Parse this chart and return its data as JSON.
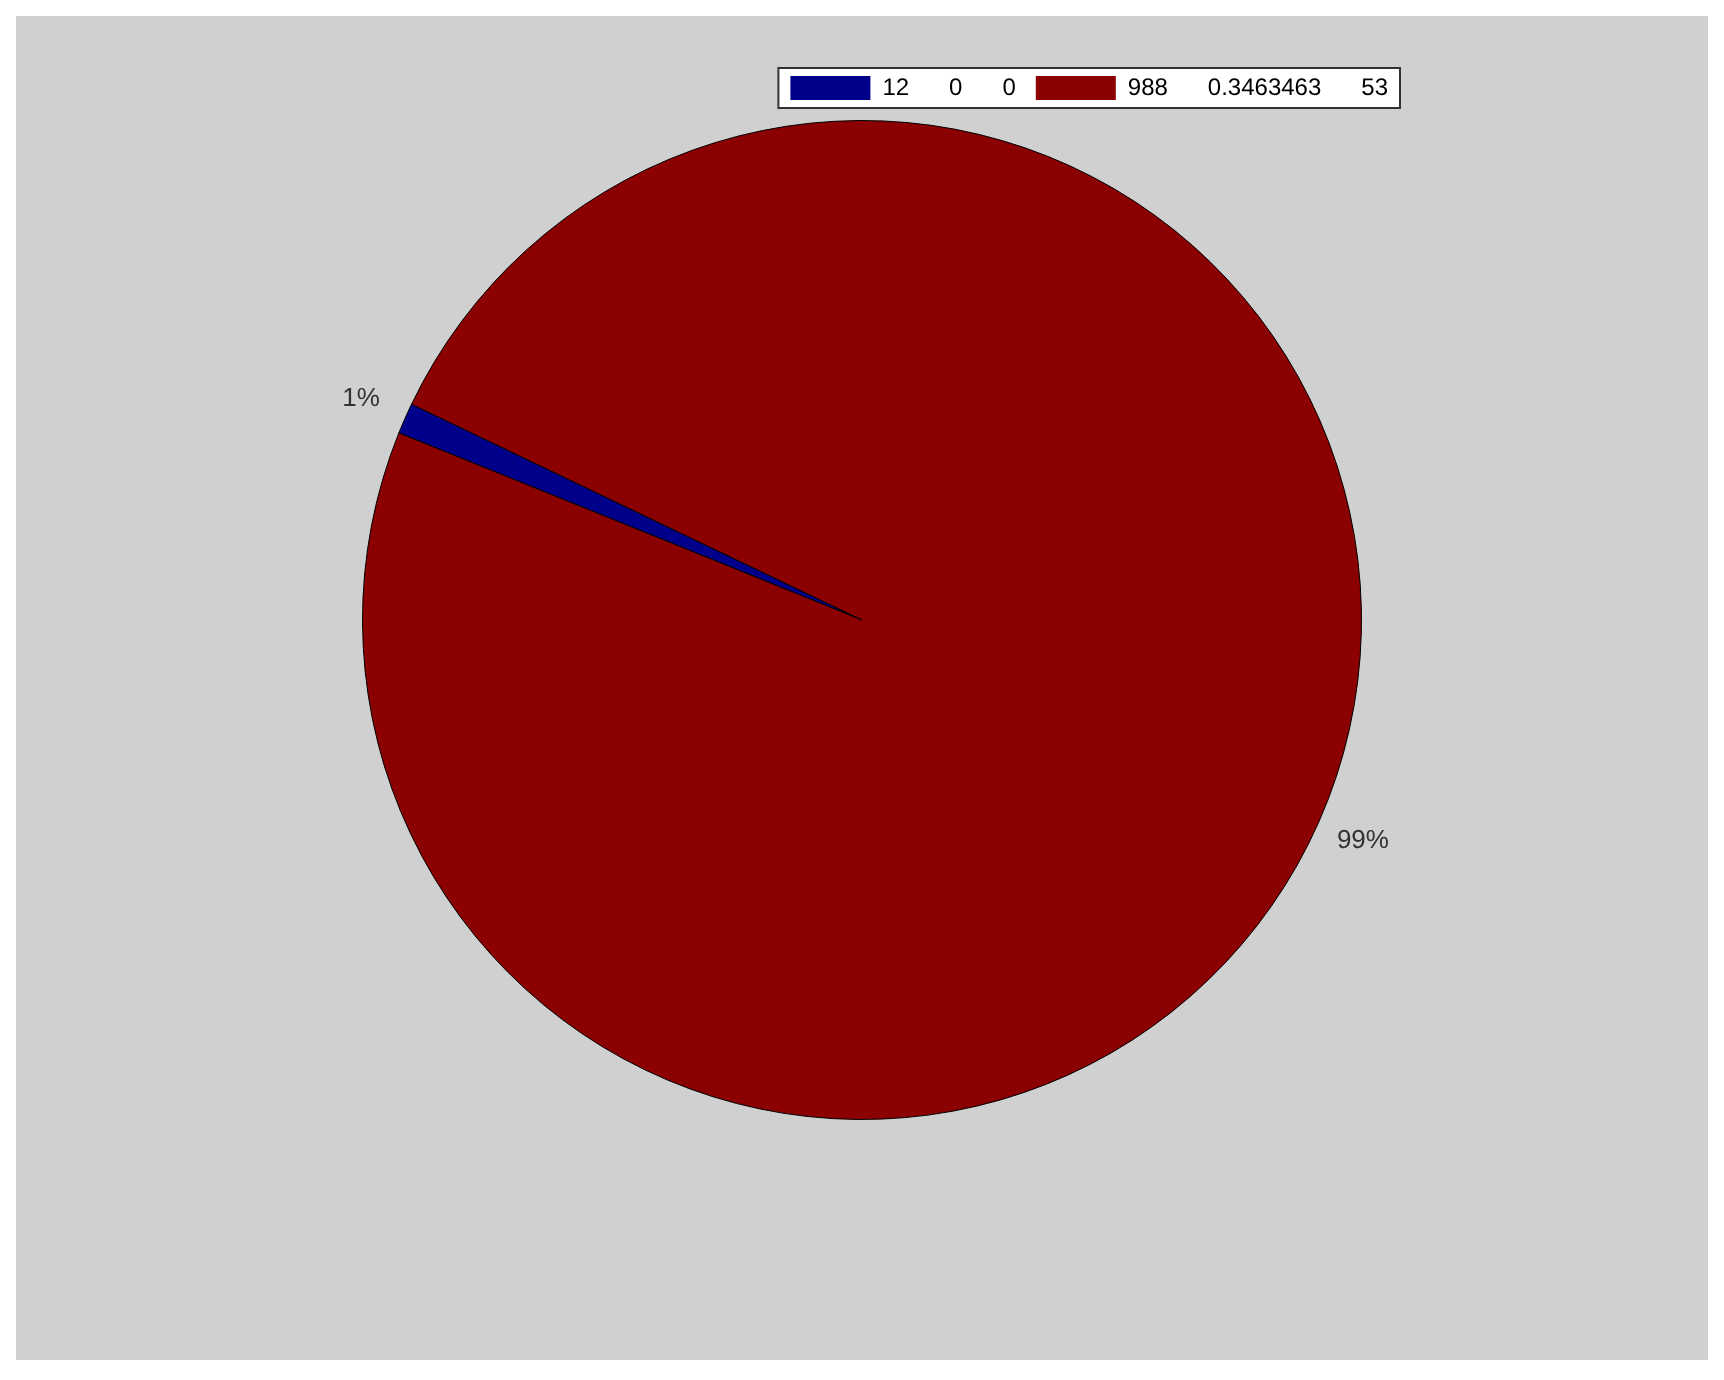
{
  "chart_data": {
    "type": "pie",
    "categories": [
      "12 0 0",
      "988 0.3463463 53"
    ],
    "values": [
      1,
      99
    ],
    "colors": [
      "#00008b",
      "#8b0000"
    ],
    "value_labels": [
      "1%",
      "99%"
    ],
    "legend": "top right"
  }
}
